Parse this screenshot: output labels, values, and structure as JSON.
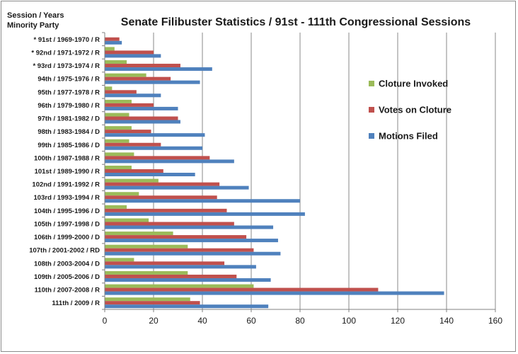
{
  "chart_data": {
    "type": "bar",
    "orientation": "horizontal",
    "title": "Senate Filibuster Statistics / 91st - 111th Congressional Sessions",
    "ylabel": "Session / Years\nMinority Party",
    "xlim": [
      0,
      160
    ],
    "xticks": [
      0,
      20,
      40,
      60,
      80,
      100,
      120,
      140,
      160
    ],
    "grid": "vertical",
    "legend_position": "right",
    "categories": [
      "* 91st / 1969-1970 / R",
      "* 92nd / 1971-1972 / R",
      "* 93rd / 1973-1974 / R",
      "94th / 1975-1976 / R",
      "95th / 1977-1978 / R",
      "96th / 1979-1980 / R",
      "97th / 1981-1982 / D",
      "98th / 1983-1984 / D",
      "99th / 1985-1986 / D",
      "100th / 1987-1988 / R",
      "101st / 1989-1990 / R",
      "102nd / 1991-1992 / R",
      "103rd / 1993-1994 / R",
      "104th / 1995-1996 / D",
      "105th / 1997-1998 / D",
      "106th / 1999-2000 / D",
      "107th / 2001-2002 / RD",
      "108th / 2003-2004 / D",
      "109th / 2005-2006 / D",
      "110th / 2007-2008 / R",
      "111th / 2009 / R"
    ],
    "series": [
      {
        "name": "Cloture Invoked",
        "color": "#9bbb59",
        "values": [
          0,
          4,
          9,
          17,
          3,
          11,
          10,
          11,
          10,
          12,
          11,
          22,
          14,
          9,
          18,
          28,
          34,
          12,
          34,
          61,
          35
        ]
      },
      {
        "name": "Votes on Cloture",
        "color": "#c0504d",
        "values": [
          6,
          20,
          31,
          27,
          13,
          20,
          30,
          19,
          23,
          43,
          24,
          47,
          46,
          50,
          53,
          58,
          61,
          49,
          54,
          112,
          39
        ]
      },
      {
        "name": "Motions Filed",
        "color": "#4f81bd",
        "values": [
          7,
          23,
          44,
          39,
          23,
          30,
          31,
          41,
          40,
          53,
          37,
          59,
          80,
          82,
          69,
          71,
          72,
          62,
          68,
          139,
          67
        ]
      }
    ]
  }
}
